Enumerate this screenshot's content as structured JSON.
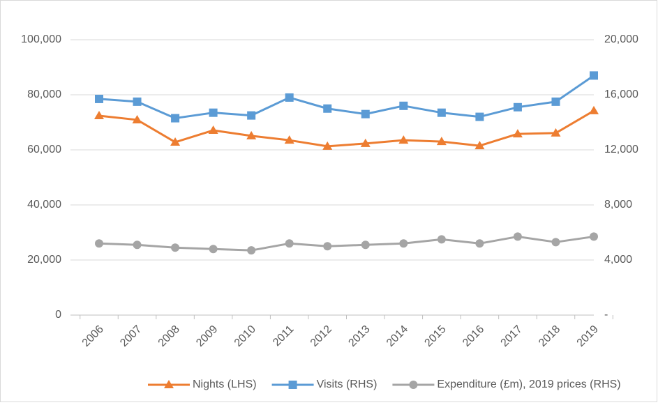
{
  "chart_data": {
    "type": "line",
    "categories": [
      "2006",
      "2007",
      "2008",
      "2009",
      "2010",
      "2011",
      "2012",
      "2013",
      "2014",
      "2015",
      "2016",
      "2017",
      "2018",
      "2019"
    ],
    "series": [
      {
        "name": "Nights (LHS)",
        "color": "#ed7d31",
        "marker": "triangle",
        "values": [
          72400,
          70900,
          62800,
          67100,
          65100,
          63500,
          61300,
          62300,
          63500,
          63000,
          61500,
          65800,
          66100,
          74200
        ]
      },
      {
        "name": "Visits (RHS)",
        "color": "#5b9bd5",
        "marker": "square",
        "axis": "y2",
        "values": [
          15700,
          15500,
          14300,
          14700,
          14500,
          15800,
          15000,
          14600,
          15200,
          14700,
          14400,
          15100,
          15500,
          17400
        ]
      },
      {
        "name": "Expenditure (£m), 2019 prices (RHS)",
        "color": "#a5a5a5",
        "marker": "circle",
        "axis": "y2",
        "values": [
          5200,
          5100,
          4900,
          4800,
          4700,
          5200,
          5000,
          5100,
          5200,
          5500,
          5200,
          5700,
          5300,
          5700
        ]
      }
    ],
    "ylim": [
      0,
      100000
    ],
    "yticks": [
      0,
      {
        "value": 20000,
        "label": "20,000"
      },
      {
        "value": 40000,
        "label": "40,000"
      },
      {
        "value": 60000,
        "label": "60,000"
      },
      {
        "value": 80000,
        "label": "80,000"
      },
      {
        "value": 100000,
        "label": "100,000"
      }
    ],
    "y2lim": [
      0,
      20000
    ],
    "y2ticks": [
      {
        "value": 0,
        "label": "-"
      },
      {
        "value": 4000,
        "label": "4,000"
      },
      {
        "value": 8000,
        "label": "8,000"
      },
      {
        "value": 12000,
        "label": "12,000"
      },
      {
        "value": 16000,
        "label": "16,000"
      },
      {
        "value": 20000,
        "label": "20,000"
      }
    ],
    "grid": true,
    "legend": "bottom"
  }
}
